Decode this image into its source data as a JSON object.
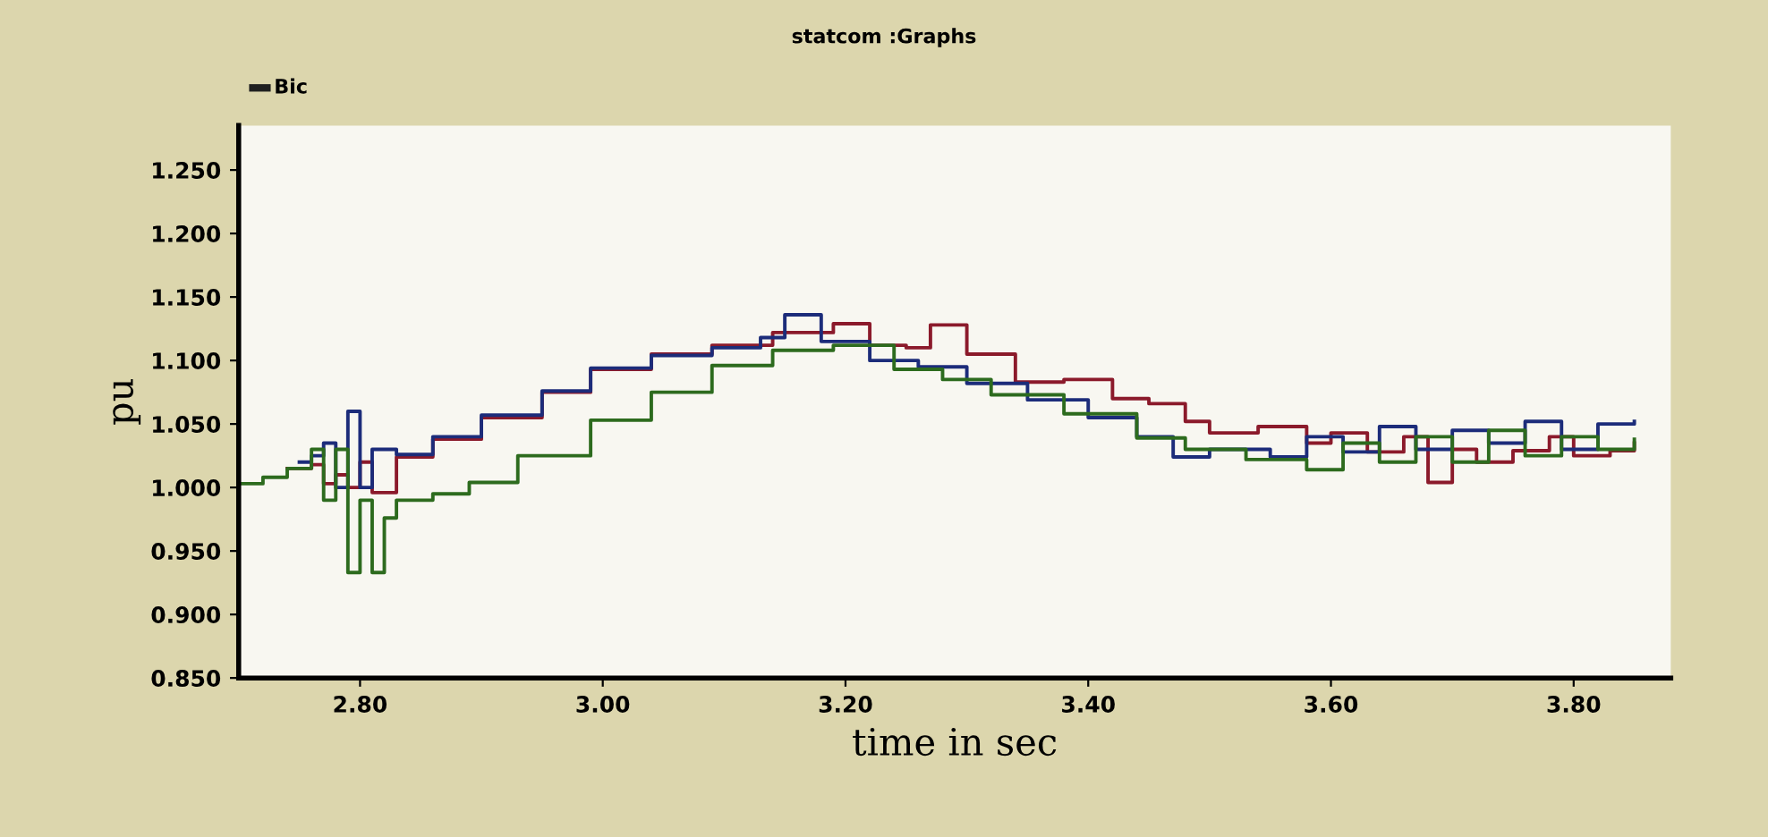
{
  "chart_data": {
    "type": "step",
    "title": "statcom :Graphs",
    "legend_title": "Bic",
    "xlabel": "time in sec",
    "ylabel": "pu",
    "xlim": [
      2.7,
      3.88
    ],
    "ylim": [
      0.85,
      1.285
    ],
    "xticks": [
      {
        "value": 2.8,
        "label": "2.80"
      },
      {
        "value": 3.0,
        "label": "3.00"
      },
      {
        "value": 3.2,
        "label": "3.20"
      },
      {
        "value": 3.4,
        "label": "3.40"
      },
      {
        "value": 3.6,
        "label": "3.60"
      },
      {
        "value": 3.8,
        "label": "3.80"
      }
    ],
    "yticks": [
      {
        "value": 0.85,
        "label": "0.850"
      },
      {
        "value": 0.9,
        "label": "0.900"
      },
      {
        "value": 0.95,
        "label": "0.950"
      },
      {
        "value": 1.0,
        "label": "1.000"
      },
      {
        "value": 1.05,
        "label": "1.050"
      },
      {
        "value": 1.1,
        "label": "1.100"
      },
      {
        "value": 1.15,
        "label": "1.150"
      },
      {
        "value": 1.2,
        "label": "1.200"
      },
      {
        "value": 1.25,
        "label": "1.250"
      }
    ],
    "grid": false,
    "series": [
      {
        "color": "#8b1a2b",
        "x": [
          2.74,
          2.76,
          2.77,
          2.78,
          2.79,
          2.8,
          2.81,
          2.83,
          2.86,
          2.9,
          2.95,
          2.99,
          3.04,
          3.09,
          3.14,
          3.19,
          3.22,
          3.25,
          3.27,
          3.3,
          3.34,
          3.38,
          3.42,
          3.45,
          3.48,
          3.5,
          3.54,
          3.58,
          3.6,
          3.63,
          3.66,
          3.68,
          3.7,
          3.72,
          3.75,
          3.78,
          3.8,
          3.83,
          3.85
        ],
        "values": [
          1.015,
          1.018,
          1.003,
          1.01,
          1.0,
          1.02,
          0.996,
          1.024,
          1.038,
          1.055,
          1.075,
          1.093,
          1.105,
          1.112,
          1.122,
          1.129,
          1.112,
          1.11,
          1.128,
          1.105,
          1.083,
          1.085,
          1.07,
          1.066,
          1.052,
          1.043,
          1.048,
          1.035,
          1.043,
          1.028,
          1.04,
          1.004,
          1.03,
          1.02,
          1.029,
          1.04,
          1.025,
          1.029,
          1.035
        ]
      },
      {
        "color": "#1c2c7a",
        "x": [
          2.75,
          2.76,
          2.77,
          2.78,
          2.79,
          2.8,
          2.81,
          2.83,
          2.86,
          2.9,
          2.95,
          2.99,
          3.04,
          3.09,
          3.13,
          3.15,
          3.18,
          3.22,
          3.26,
          3.3,
          3.35,
          3.4,
          3.44,
          3.47,
          3.5,
          3.55,
          3.58,
          3.61,
          3.64,
          3.67,
          3.7,
          3.73,
          3.76,
          3.79,
          3.82,
          3.85
        ],
        "values": [
          1.02,
          1.025,
          1.035,
          1.0,
          1.06,
          1.0,
          1.03,
          1.026,
          1.04,
          1.057,
          1.076,
          1.094,
          1.104,
          1.11,
          1.118,
          1.136,
          1.115,
          1.1,
          1.095,
          1.082,
          1.069,
          1.055,
          1.04,
          1.024,
          1.03,
          1.024,
          1.04,
          1.028,
          1.048,
          1.03,
          1.045,
          1.035,
          1.052,
          1.03,
          1.05,
          1.052
        ]
      },
      {
        "color": "#2d6b1e",
        "x": [
          2.7,
          2.72,
          2.74,
          2.76,
          2.77,
          2.78,
          2.79,
          2.8,
          2.81,
          2.82,
          2.83,
          2.86,
          2.89,
          2.93,
          2.99,
          3.04,
          3.09,
          3.14,
          3.19,
          3.24,
          3.28,
          3.32,
          3.38,
          3.44,
          3.48,
          3.53,
          3.58,
          3.61,
          3.64,
          3.67,
          3.7,
          3.73,
          3.76,
          3.79,
          3.82,
          3.85
        ],
        "values": [
          1.003,
          1.008,
          1.015,
          1.03,
          0.99,
          1.03,
          0.933,
          0.99,
          0.933,
          0.976,
          0.99,
          0.995,
          1.004,
          1.025,
          1.053,
          1.075,
          1.096,
          1.108,
          1.112,
          1.093,
          1.085,
          1.073,
          1.058,
          1.039,
          1.03,
          1.022,
          1.014,
          1.035,
          1.02,
          1.04,
          1.02,
          1.045,
          1.025,
          1.04,
          1.03,
          1.038
        ]
      }
    ]
  }
}
